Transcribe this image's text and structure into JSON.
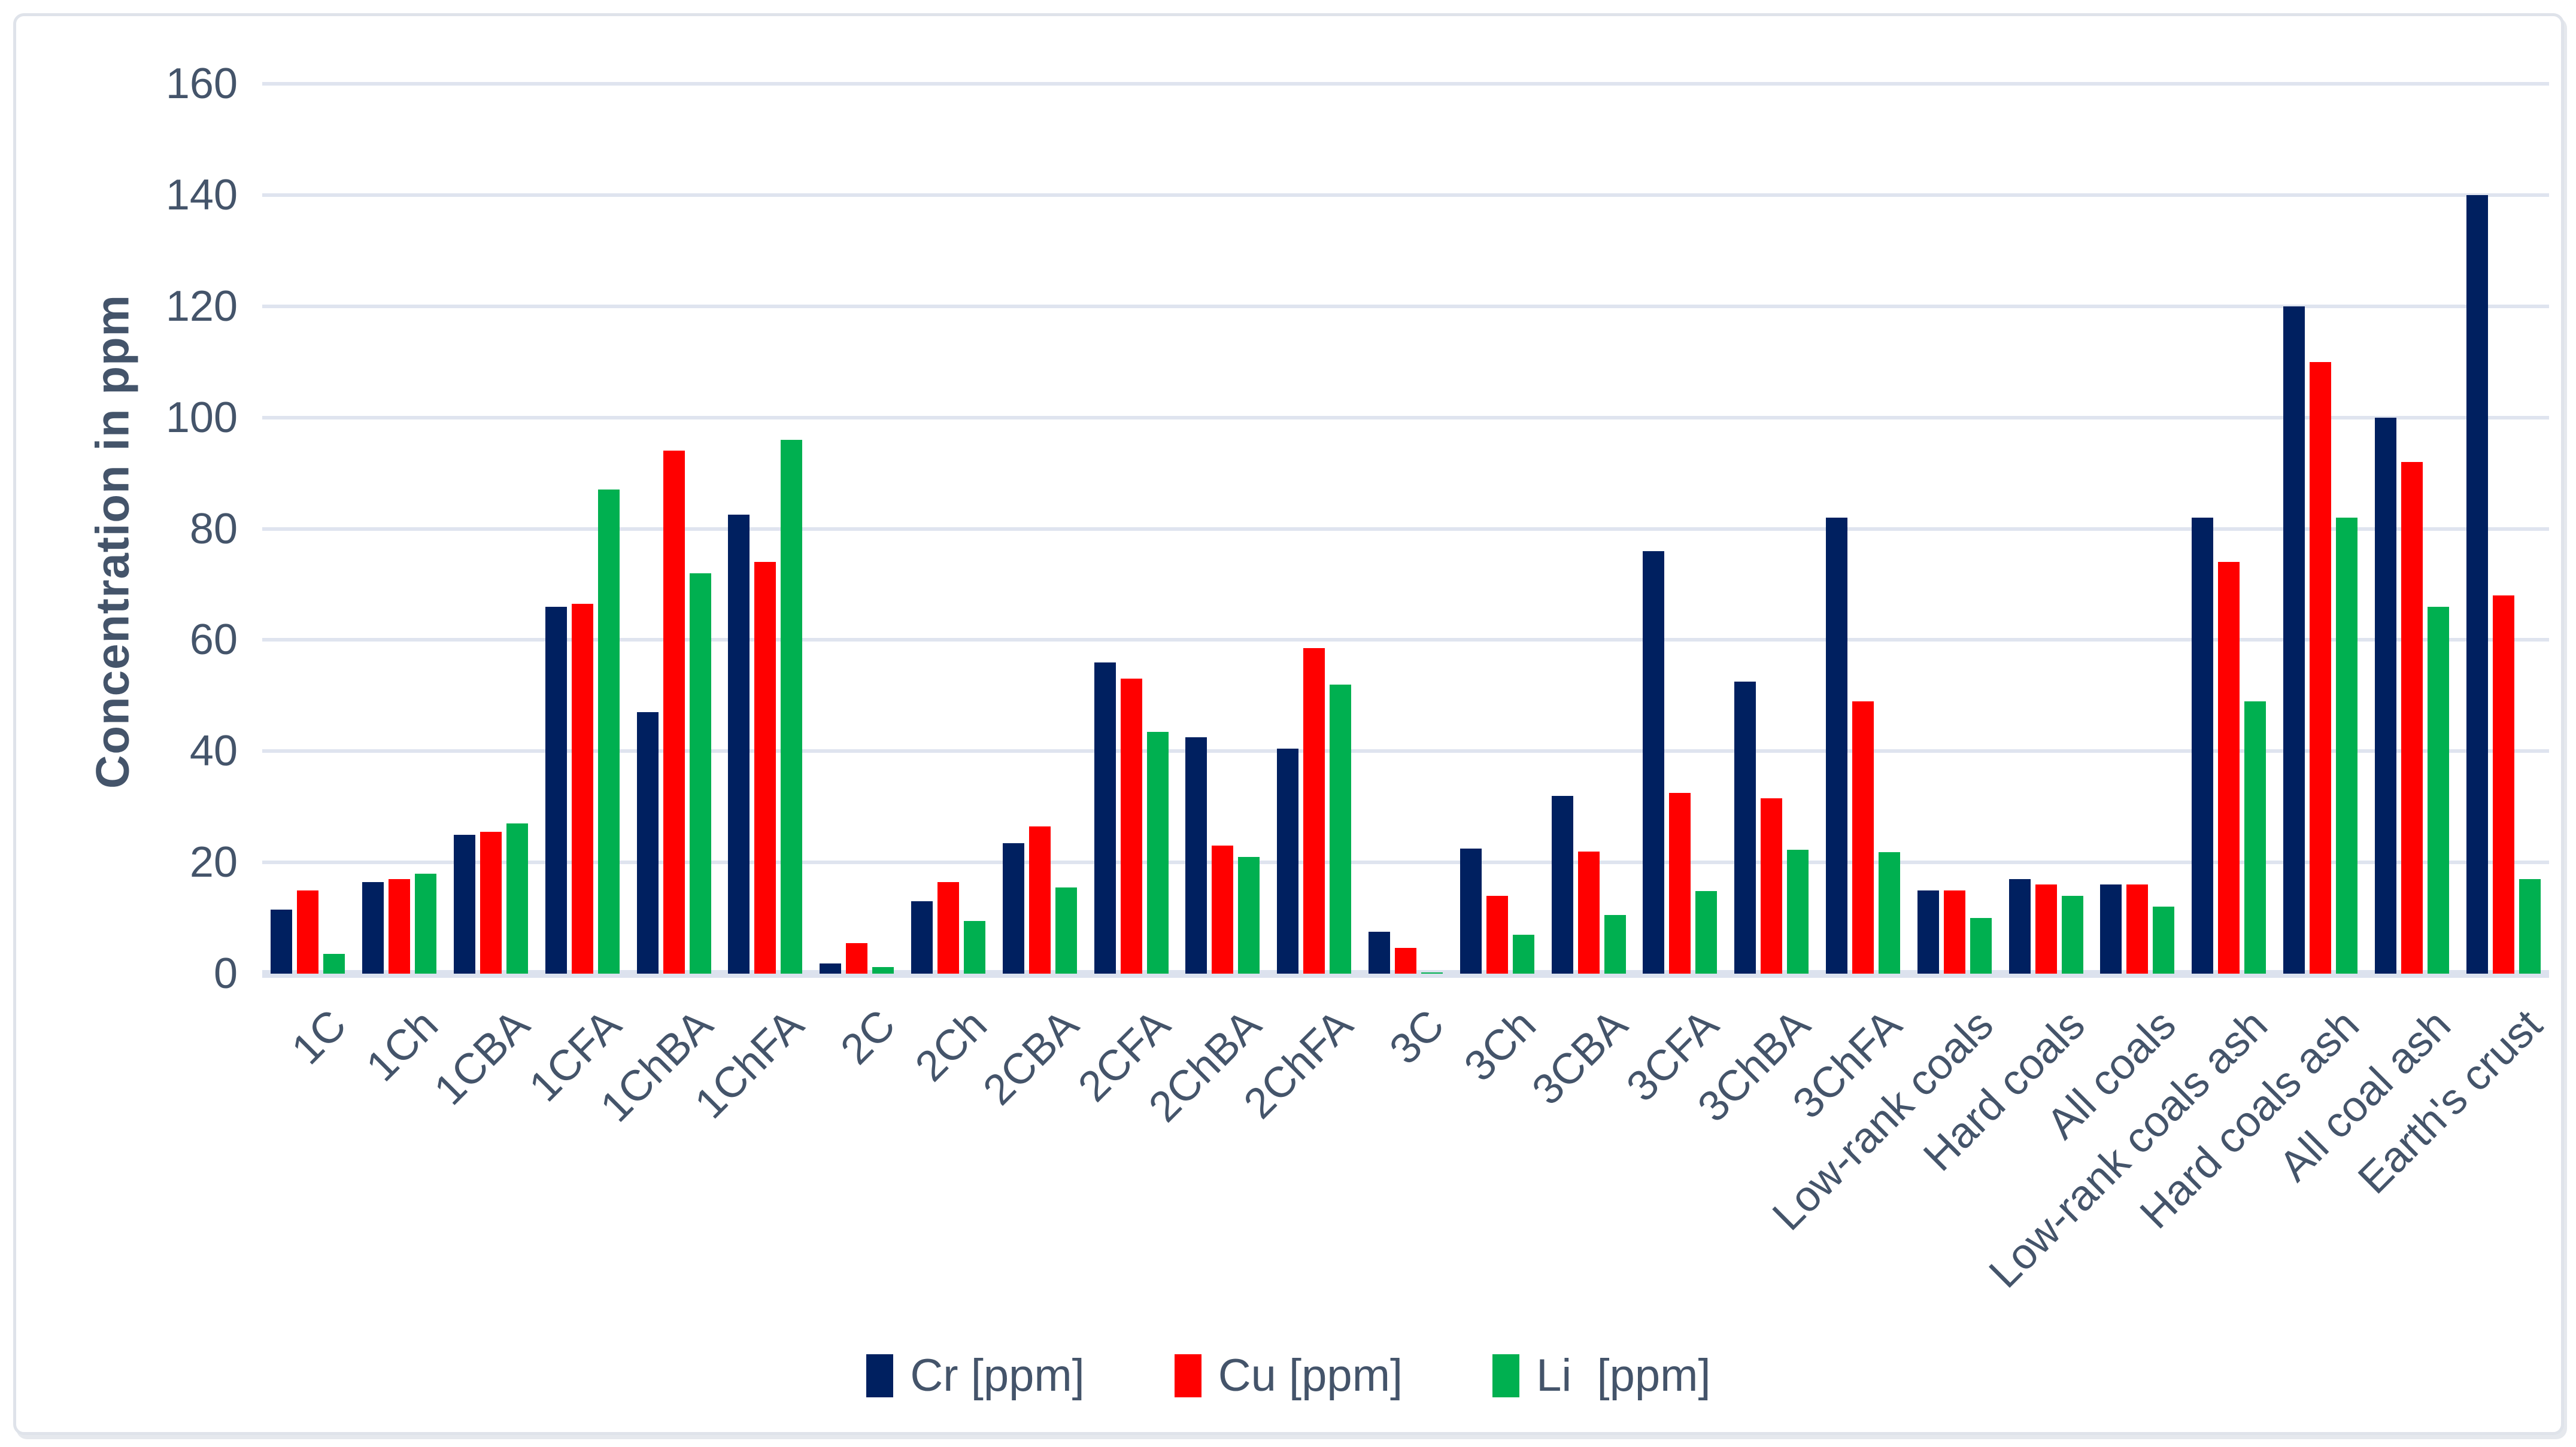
{
  "chart": {
    "y_axis_title": "Concentration in ppm",
    "text_color": "#44546A",
    "gridline_color": "#dfe4ef",
    "border_color": "#dfe3ea",
    "yticks": [
      0,
      20,
      40,
      60,
      80,
      100,
      120,
      140,
      160
    ]
  },
  "chart_data": {
    "type": "bar",
    "title": "",
    "xlabel": "",
    "ylabel": "Concentration in ppm",
    "ylim": [
      0,
      160
    ],
    "ytick_step": 20,
    "grid": true,
    "legend_position": "bottom-center",
    "x_label_rotation_deg": 45,
    "categories": [
      "1C",
      "1Ch",
      "1CBA",
      "1CFA",
      "1ChBA",
      "1ChFA",
      "2C",
      "2Ch",
      "2CBA",
      "2CFA",
      "2ChBA",
      "2ChFA",
      "3C",
      "3Ch",
      "3CBA",
      "3CFA",
      "3ChBA",
      "3ChFA",
      "Low-rank coals",
      "Hard coals",
      "All coals",
      "Low-rank coals ash",
      "Hard coals ash",
      "All coal ash",
      "Earth's crust"
    ],
    "series": [
      {
        "name": "Cr [ppm]",
        "color": "#002060",
        "values": [
          11.5,
          16.5,
          25,
          66,
          47,
          82.5,
          1.8,
          13,
          23.5,
          56,
          42.5,
          40.5,
          7.5,
          22.5,
          32,
          76,
          52.5,
          82,
          15,
          17,
          16,
          82,
          120,
          100,
          140
        ]
      },
      {
        "name": "Cu [ppm]",
        "color": "#FF0000",
        "values": [
          15,
          17,
          25.5,
          66.5,
          94,
          74,
          5.5,
          16.5,
          26.5,
          53,
          23,
          58.5,
          4.6,
          14,
          22,
          32.5,
          31.5,
          49,
          15,
          16,
          16,
          74,
          110,
          92,
          68
        ]
      },
      {
        "name": "Li  [ppm]",
        "color": "#00B050",
        "values": [
          3.5,
          18,
          27,
          87,
          72,
          96,
          1.2,
          9.5,
          15.5,
          43.5,
          21,
          52,
          0.2,
          7,
          10.5,
          14.8,
          22.3,
          21.8,
          10,
          14,
          12,
          49,
          82,
          66,
          17
        ]
      }
    ]
  }
}
